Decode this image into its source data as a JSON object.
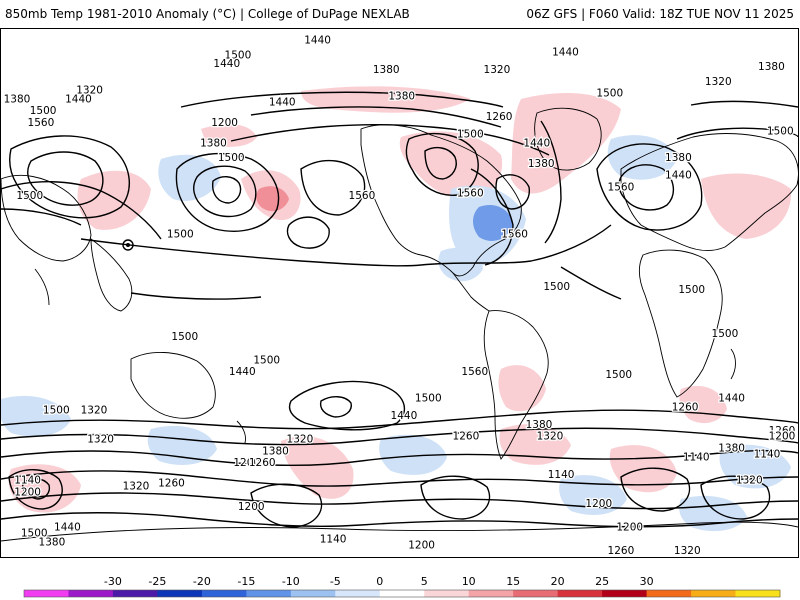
{
  "header": {
    "title": "850mb Temp 1981-2010 Anomaly (°C) | College of DuPage NEXLAB",
    "run_info": "06Z GFS | F060 Valid: 18Z TUE NOV 11 2025"
  },
  "colorbar": {
    "ticks": [
      "-30",
      "-25",
      "-20",
      "-15",
      "-10",
      "-5",
      "0",
      "5",
      "10",
      "15",
      "20",
      "25",
      "30"
    ],
    "colors": [
      "#f23cf2",
      "#9b19c8",
      "#4b1aa8",
      "#0c35b8",
      "#2f63d9",
      "#5e93e8",
      "#9dc2f2",
      "#d7e6fb",
      "#ffffff",
      "#fbd6d8",
      "#f4a3a6",
      "#e86c73",
      "#d8323c",
      "#b3001a",
      "#f36a1a",
      "#f7ad18",
      "#f8e01a"
    ]
  },
  "map": {
    "shading_colors": {
      "cold": "#cfe1f7",
      "cold_strong": "#6f9be8",
      "warm": "#f9cfd3",
      "warm_strong": "#f08f98"
    },
    "contour_labels": [
      {
        "text": "1440",
        "lon": -37,
        "lat": 86
      },
      {
        "text": "1500",
        "lon": -73,
        "lat": 81
      },
      {
        "text": "1440",
        "lon": -78,
        "lat": 78
      },
      {
        "text": "1380",
        "lon": -6,
        "lat": 76
      },
      {
        "text": "1440",
        "lon": 75,
        "lat": 82
      },
      {
        "text": "1320",
        "lon": 44,
        "lat": 76
      },
      {
        "text": "1380",
        "lon": 168,
        "lat": 77
      },
      {
        "text": "1320",
        "lon": 144,
        "lat": 72
      },
      {
        "text": "1320",
        "lon": -140,
        "lat": 69
      },
      {
        "text": "1380",
        "lon": -175,
        "lat": 66
      },
      {
        "text": "1440",
        "lon": -145,
        "lat": 66
      },
      {
        "text": "1500",
        "lon": -161,
        "lat": 62
      },
      {
        "text": "1560",
        "lon": -162,
        "lat": 58
      },
      {
        "text": "1380",
        "lon": 1,
        "lat": 67
      },
      {
        "text": "1440",
        "lon": -53,
        "lat": 65
      },
      {
        "text": "1200",
        "lon": -79,
        "lat": 58
      },
      {
        "text": "1380",
        "lon": -84,
        "lat": 51
      },
      {
        "text": "1500",
        "lon": -76,
        "lat": 46
      },
      {
        "text": "1260",
        "lon": 45,
        "lat": 60
      },
      {
        "text": "1500",
        "lon": 32,
        "lat": 54
      },
      {
        "text": "1500",
        "lon": 95,
        "lat": 68
      },
      {
        "text": "1440",
        "lon": 62,
        "lat": 51
      },
      {
        "text": "1380",
        "lon": 64,
        "lat": 44
      },
      {
        "text": "1380",
        "lon": 126,
        "lat": 46
      },
      {
        "text": "1440",
        "lon": 126,
        "lat": 40
      },
      {
        "text": "1500",
        "lon": 172,
        "lat": 55
      },
      {
        "text": "1560",
        "lon": 100,
        "lat": 36
      },
      {
        "text": "1560",
        "lon": 32,
        "lat": 34
      },
      {
        "text": "1560",
        "lon": -17,
        "lat": 33
      },
      {
        "text": "1500",
        "lon": -167,
        "lat": 33
      },
      {
        "text": "1560",
        "lon": 52,
        "lat": 20
      },
      {
        "text": "1500",
        "lon": -99,
        "lat": 20
      },
      {
        "text": "1500",
        "lon": 132,
        "lat": 1
      },
      {
        "text": "1500",
        "lon": 147,
        "lat": -14
      },
      {
        "text": "1500",
        "lon": 71,
        "lat": 2
      },
      {
        "text": "1500",
        "lon": -97,
        "lat": -15
      },
      {
        "text": "1500",
        "lon": -60,
        "lat": -23
      },
      {
        "text": "1440",
        "lon": -71,
        "lat": -27
      },
      {
        "text": "1560",
        "lon": 34,
        "lat": -27
      },
      {
        "text": "1500",
        "lon": 13,
        "lat": -36
      },
      {
        "text": "1440",
        "lon": 2,
        "lat": -42
      },
      {
        "text": "1500",
        "lon": 99,
        "lat": -28
      },
      {
        "text": "1500",
        "lon": -155,
        "lat": -40
      },
      {
        "text": "1320",
        "lon": -135,
        "lat": -50
      },
      {
        "text": "1320",
        "lon": -138,
        "lat": -40
      },
      {
        "text": "1140",
        "lon": -168,
        "lat": -64
      },
      {
        "text": "1200",
        "lon": -168,
        "lat": -68
      },
      {
        "text": "1320",
        "lon": -119,
        "lat": -66
      },
      {
        "text": "1260",
        "lon": -103,
        "lat": -65
      },
      {
        "text": "1200",
        "lon": -69,
        "lat": -58
      },
      {
        "text": "1260",
        "lon": -62,
        "lat": -58
      },
      {
        "text": "1320",
        "lon": -45,
        "lat": -50
      },
      {
        "text": "1380",
        "lon": -56,
        "lat": -54
      },
      {
        "text": "1200",
        "lon": -67,
        "lat": -73
      },
      {
        "text": "1500",
        "lon": -165,
        "lat": -82
      },
      {
        "text": "1440",
        "lon": -150,
        "lat": -80
      },
      {
        "text": "1380",
        "lon": -157,
        "lat": -85
      },
      {
        "text": "1140",
        "lon": -30,
        "lat": -84
      },
      {
        "text": "1200",
        "lon": 10,
        "lat": -86
      },
      {
        "text": "1260",
        "lon": 100,
        "lat": -88
      },
      {
        "text": "1320",
        "lon": 130,
        "lat": -89
      },
      {
        "text": "1260",
        "lon": 30,
        "lat": -49
      },
      {
        "text": "1380",
        "lon": 63,
        "lat": -45
      },
      {
        "text": "1320",
        "lon": 68,
        "lat": -49
      },
      {
        "text": "1140",
        "lon": 73,
        "lat": -62
      },
      {
        "text": "1200",
        "lon": 90,
        "lat": -72
      },
      {
        "text": "1200",
        "lon": 104,
        "lat": -80
      },
      {
        "text": "1140",
        "lon": 134,
        "lat": -56
      },
      {
        "text": "1260",
        "lon": 129,
        "lat": -39
      },
      {
        "text": "1440",
        "lon": 150,
        "lat": -36
      },
      {
        "text": "1260",
        "lon": 175,
        "lat": -47
      },
      {
        "text": "1380",
        "lon": 150,
        "lat": -53
      },
      {
        "text": "1320",
        "lon": 158,
        "lat": -64
      },
      {
        "text": "1140",
        "lon": 166,
        "lat": -55
      },
      {
        "text": "1200",
        "lon": 175,
        "lat": -49
      }
    ]
  }
}
